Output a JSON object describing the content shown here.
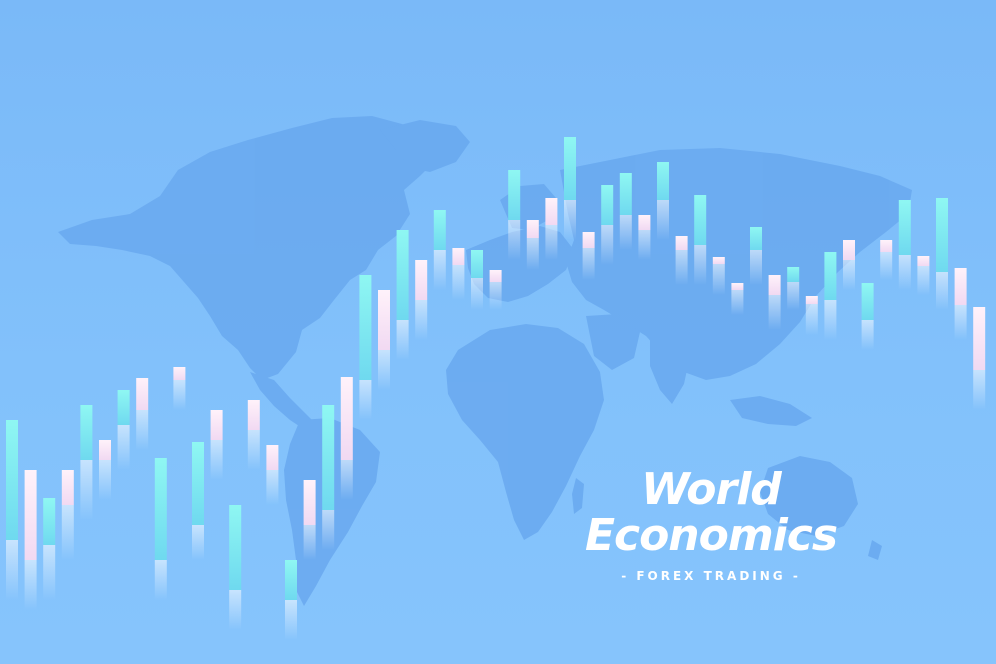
{
  "title": {
    "line1": "World",
    "line2": "Economics"
  },
  "subtitle": "- FOREX TRADING -",
  "colors": {
    "background": "#7fbefa",
    "map": "#6aaaf0",
    "candle_up": "#7ff3ee",
    "candle_down": "#ffe6f4",
    "text": "#ffffff"
  },
  "candles": [
    {
      "w": 160,
      "top": 360,
      "ot": 420,
      "ob": 540,
      "bot": 600,
      "c": "up"
    },
    {
      "w": 160,
      "top": 440,
      "ot": 470,
      "ob": 560,
      "bot": 610,
      "c": "down"
    },
    {
      "w": 160,
      "top": 460,
      "ot": 498,
      "ob": 545,
      "bot": 600,
      "c": "up"
    },
    {
      "w": 160,
      "top": 455,
      "ot": 470,
      "ob": 505,
      "bot": 560,
      "c": "down"
    },
    {
      "w": 160,
      "top": 300,
      "ot": 405,
      "ob": 460,
      "bot": 520,
      "c": "up"
    },
    {
      "w": 160,
      "top": 405,
      "ot": 440,
      "ob": 460,
      "bot": 500,
      "c": "down"
    },
    {
      "w": 160,
      "top": 340,
      "ot": 390,
      "ob": 425,
      "bot": 470,
      "c": "up"
    },
    {
      "w": 160,
      "top": 310,
      "ot": 378,
      "ob": 410,
      "bot": 450,
      "c": "down"
    },
    {
      "w": 160,
      "top": 345,
      "ot": 458,
      "ob": 560,
      "bot": 600,
      "c": "up"
    },
    {
      "w": 160,
      "top": 335,
      "ot": 367,
      "ob": 380,
      "bot": 410,
      "c": "down"
    },
    {
      "w": 160,
      "top": 340,
      "ot": 442,
      "ob": 525,
      "bot": 560,
      "c": "up"
    },
    {
      "w": 160,
      "top": 340,
      "ot": 410,
      "ob": 440,
      "bot": 480,
      "c": "down"
    },
    {
      "w": 160,
      "top": 338,
      "ot": 505,
      "ob": 590,
      "bot": 630,
      "c": "up"
    },
    {
      "w": 160,
      "top": 335,
      "ot": 400,
      "ob": 430,
      "bot": 470,
      "c": "down"
    },
    {
      "w": 160,
      "top": 375,
      "ot": 445,
      "ob": 470,
      "bot": 505,
      "c": "down"
    },
    {
      "w": 160,
      "top": 420,
      "ot": 560,
      "ob": 600,
      "bot": 640,
      "c": "up"
    },
    {
      "w": 160,
      "top": 420,
      "ot": 480,
      "ob": 525,
      "bot": 560,
      "c": "down"
    },
    {
      "w": 160,
      "top": 200,
      "ot": 405,
      "ob": 510,
      "bot": 550,
      "c": "up"
    },
    {
      "w": 160,
      "top": 225,
      "ot": 377,
      "ob": 460,
      "bot": 500,
      "c": "down"
    },
    {
      "w": 160,
      "top": 110,
      "ot": 275,
      "ob": 380,
      "bot": 420,
      "c": "up"
    },
    {
      "w": 160,
      "top": 180,
      "ot": 290,
      "ob": 350,
      "bot": 390,
      "c": "down"
    },
    {
      "w": 160,
      "top": 165,
      "ot": 230,
      "ob": 320,
      "bot": 360,
      "c": "up"
    },
    {
      "w": 160,
      "top": 185,
      "ot": 260,
      "ob": 300,
      "bot": 340,
      "c": "down"
    },
    {
      "w": 160,
      "top": 150,
      "ot": 210,
      "ob": 250,
      "bot": 290,
      "c": "up"
    },
    {
      "w": 160,
      "top": 235,
      "ot": 248,
      "ob": 265,
      "bot": 300,
      "c": "down"
    },
    {
      "w": 160,
      "top": 210,
      "ot": 250,
      "ob": 278,
      "bot": 310,
      "c": "up"
    },
    {
      "w": 160,
      "top": 205,
      "ot": 270,
      "ob": 282,
      "bot": 310,
      "c": "down"
    },
    {
      "w": 160,
      "top": 95,
      "ot": 170,
      "ob": 220,
      "bot": 260,
      "c": "up"
    },
    {
      "w": 160,
      "top": 160,
      "ot": 220,
      "ob": 238,
      "bot": 270,
      "c": "down"
    },
    {
      "w": 160,
      "top": 45,
      "ot": 198,
      "ob": 225,
      "bot": 260,
      "c": "down"
    },
    {
      "w": 160,
      "top": 45,
      "ot": 137,
      "ob": 200,
      "bot": 240,
      "c": "up"
    },
    {
      "w": 160,
      "top": 185,
      "ot": 232,
      "ob": 248,
      "bot": 280,
      "c": "down"
    },
    {
      "w": 160,
      "top": 110,
      "ot": 185,
      "ob": 225,
      "bot": 265,
      "c": "up"
    },
    {
      "w": 160,
      "top": 145,
      "ot": 173,
      "ob": 215,
      "bot": 250,
      "c": "up"
    },
    {
      "w": 160,
      "top": 185,
      "ot": 215,
      "ob": 230,
      "bot": 260,
      "c": "down"
    },
    {
      "w": 160,
      "top": 90,
      "ot": 162,
      "ob": 200,
      "bot": 240,
      "c": "up"
    },
    {
      "w": 160,
      "top": 210,
      "ot": 236,
      "ob": 250,
      "bot": 285,
      "c": "down"
    },
    {
      "w": 160,
      "top": 125,
      "ot": 195,
      "ob": 245,
      "bot": 285,
      "c": "up"
    },
    {
      "w": 160,
      "top": 225,
      "ot": 257,
      "ob": 264,
      "bot": 295,
      "c": "down"
    },
    {
      "w": 160,
      "top": 265,
      "ot": 283,
      "ob": 290,
      "bot": 315,
      "c": "down"
    },
    {
      "w": 160,
      "top": 190,
      "ot": 227,
      "ob": 250,
      "bot": 285,
      "c": "up"
    },
    {
      "w": 160,
      "top": 215,
      "ot": 275,
      "ob": 295,
      "bot": 330,
      "c": "down"
    },
    {
      "w": 160,
      "top": 240,
      "ot": 267,
      "ob": 282,
      "bot": 310,
      "c": "up"
    },
    {
      "w": 160,
      "top": 240,
      "ot": 296,
      "ob": 304,
      "bot": 335,
      "c": "down"
    },
    {
      "w": 160,
      "top": 165,
      "ot": 252,
      "ob": 300,
      "bot": 340,
      "c": "up"
    },
    {
      "w": 160,
      "top": 190,
      "ot": 240,
      "ob": 260,
      "bot": 290,
      "c": "down"
    },
    {
      "w": 160,
      "top": 235,
      "ot": 283,
      "ob": 320,
      "bot": 350,
      "c": "up"
    },
    {
      "w": 160,
      "top": 205,
      "ot": 240,
      "ob": 252,
      "bot": 280,
      "c": "down"
    },
    {
      "w": 160,
      "top": 125,
      "ot": 200,
      "ob": 255,
      "bot": 290,
      "c": "up"
    },
    {
      "w": 160,
      "top": 240,
      "ot": 256,
      "ob": 266,
      "bot": 295,
      "c": "down"
    },
    {
      "w": 160,
      "top": 145,
      "ot": 198,
      "ob": 272,
      "bot": 310,
      "c": "up"
    },
    {
      "w": 160,
      "top": 235,
      "ot": 268,
      "ob": 305,
      "bot": 340,
      "c": "down"
    },
    {
      "w": 160,
      "top": 210,
      "ot": 307,
      "ob": 370,
      "bot": 410,
      "c": "down"
    }
  ]
}
